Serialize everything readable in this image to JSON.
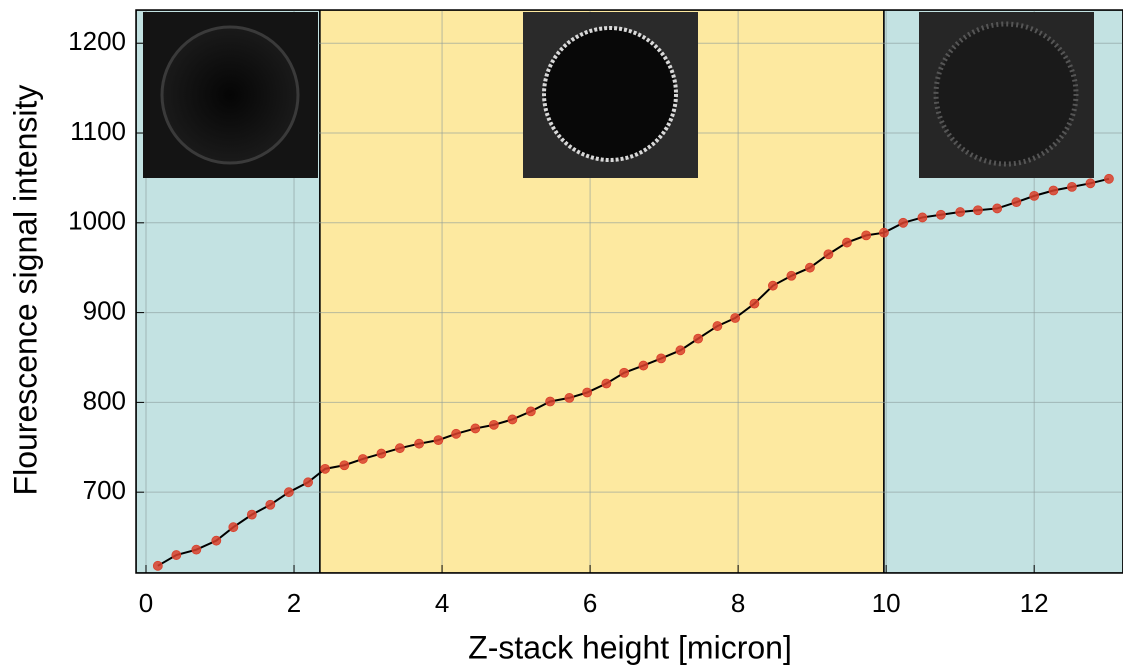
{
  "chart_data": {
    "type": "line",
    "x_label": "Z-stack height [micron]",
    "y_label": "Flourescence signal intensity",
    "xlim": [
      -0.135,
      13.2
    ],
    "ylim": [
      610,
      1237
    ],
    "xticks": [
      0,
      2,
      4,
      6,
      8,
      10,
      12
    ],
    "yticks": [
      700,
      800,
      900,
      1000,
      1100,
      1200
    ],
    "grid": true,
    "regions": [
      {
        "start": -0.135,
        "end": 2.35,
        "color": "#c3e2e2"
      },
      {
        "start": 2.35,
        "end": 9.97,
        "color": "#fde9a0"
      },
      {
        "start": 9.97,
        "end": 13.2,
        "color": "#c3e2e2"
      }
    ],
    "series": [
      {
        "line_color": "#000000",
        "color": "#d9402b",
        "x": [
          0.16,
          0.41,
          0.68,
          0.95,
          1.18,
          1.43,
          1.68,
          1.93,
          2.19,
          2.42,
          2.68,
          2.93,
          3.18,
          3.43,
          3.69,
          3.95,
          4.19,
          4.45,
          4.7,
          4.95,
          5.2,
          5.46,
          5.72,
          5.96,
          6.22,
          6.46,
          6.72,
          6.96,
          7.22,
          7.46,
          7.72,
          7.96,
          8.22,
          8.47,
          8.72,
          8.97,
          9.22,
          9.47,
          9.73,
          9.97,
          10.23,
          10.49,
          10.74,
          11.0,
          11.24,
          11.5,
          11.76,
          12.0,
          12.26,
          12.51,
          12.76,
          13.01
        ],
        "values": [
          618,
          630,
          636,
          646,
          661,
          675,
          686,
          700,
          711,
          726,
          730,
          737,
          743,
          749,
          754,
          758,
          765,
          771,
          775,
          781,
          790,
          801,
          805,
          811,
          821,
          833,
          841,
          849,
          858,
          871,
          885,
          894,
          910,
          930,
          941,
          950,
          965,
          978,
          986,
          989,
          1000,
          1006,
          1009,
          1012,
          1014,
          1016,
          1023,
          1030,
          1036,
          1040,
          1044,
          1049
        ]
      }
    ]
  }
}
